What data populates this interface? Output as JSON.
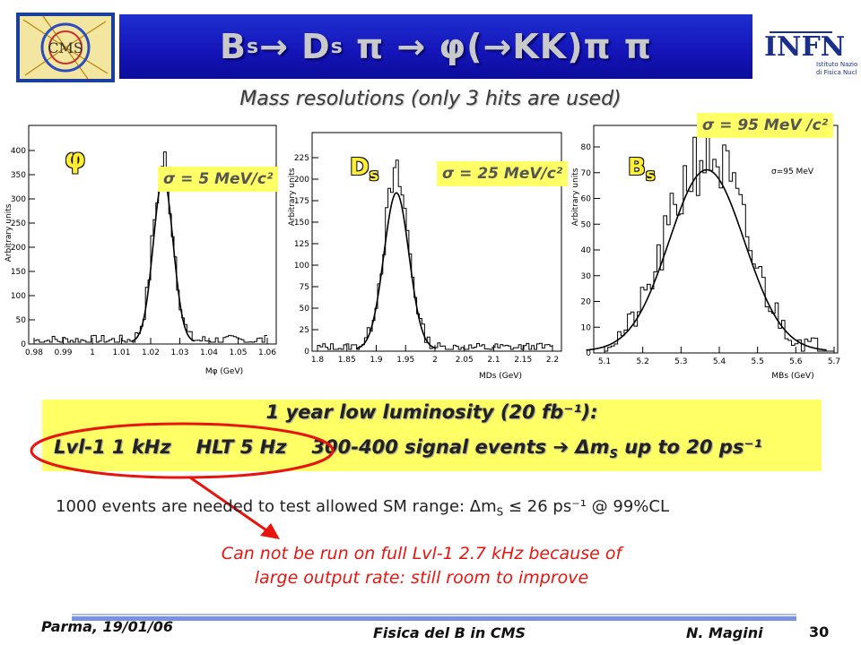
{
  "title": {
    "main": "B",
    "sub1": "s",
    "rest1": "→ D",
    "sub2": "s",
    "rest2": "π → φ(→KK)π π"
  },
  "logos": {
    "left": "CMS",
    "right_big": "INFN",
    "right_line1": "Istituto Nazionale",
    "right_line2": "di Fisica Nucleare"
  },
  "subtitle": "Mass resolutions (only 3 hits are used)",
  "plots": [
    {
      "label": "φ",
      "sigma": "σ = 5 MeV/c²",
      "ylabel": "Arbitrary units",
      "xlabel": "Mφ (GeV)",
      "xticks": [
        "0.98",
        "0.99",
        "1",
        "1.01",
        "1.02",
        "1.03",
        "1.04",
        "1.05",
        "1.06"
      ],
      "yticks": [
        "0",
        "50",
        "100",
        "150",
        "200",
        "250",
        "300",
        "350",
        "400"
      ]
    },
    {
      "label": "Ds",
      "sigma": "σ = 25 MeV/c²",
      "ylabel": "Arbitrary units",
      "xlabel": "MDs (GeV)",
      "xticks": [
        "1.8",
        "1.85",
        "1.9",
        "1.95",
        "2",
        "2.05",
        "2.1",
        "2.15",
        "2.2"
      ],
      "yticks": [
        "0",
        "25",
        "50",
        "75",
        "100",
        "125",
        "150",
        "175",
        "200",
        "225"
      ]
    },
    {
      "label": "Bs",
      "sigma": "σ = 95 MeV /c²",
      "inner_label": "σ=95 MeV",
      "ylabel": "Arbitrary units",
      "xlabel": "MBs (GeV)",
      "xticks": [
        "5.1",
        "5.2",
        "5.3",
        "5.4",
        "5.5",
        "5.6",
        "5.7"
      ],
      "yticks": [
        "0",
        "10",
        "20",
        "30",
        "40",
        "50",
        "60",
        "70",
        "80"
      ]
    }
  ],
  "lumi": {
    "title": "1 year low luminosity (20 fb⁻¹):",
    "lvl1": "Lvl-1 1 kHz",
    "hlt": "HLT 5 Hz",
    "events": "300-400 signal events ➔ Δm",
    "events_sub": "S",
    "events_tail": " up to 20 ps⁻¹"
  },
  "needed": {
    "text": "1000 events are needed to test allowed SM range: Δm",
    "sub": "S",
    "tail": " ≤ 26 ps⁻¹ @ 99%CL"
  },
  "note": {
    "line1": "Can not be run on full Lvl-1 2.7 kHz because of",
    "line2": "large output rate: still room to improve"
  },
  "footer": {
    "left": "Parma, 19/01/06",
    "center": "Fisica del B in CMS",
    "author": "N. Magini",
    "page": "30"
  },
  "colors": {
    "title_bg": "#1414b8",
    "highlight": "#ffff66",
    "note": "#e8150f",
    "ellipse": "#e8150f"
  }
}
